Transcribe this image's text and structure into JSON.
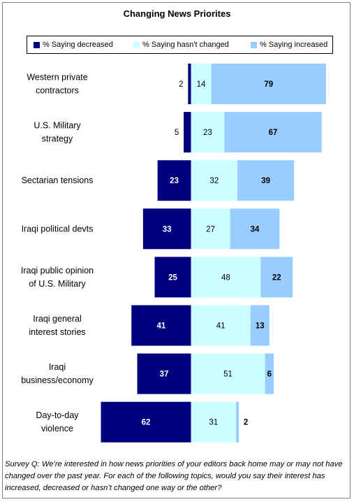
{
  "chart_data": {
    "type": "bar",
    "subtype": "diverging-stacked-horizontal",
    "title": "Changing News Priorites",
    "categories": [
      "Western private contractors",
      "U.S. Military strategy",
      "Sectarian tensions",
      "Iraqi political devts",
      "Iraqi public opinion of U.S. Military",
      "Iraqi general interest stories",
      "Iraqi business/economy",
      "Day-to-day violence"
    ],
    "category_lines": [
      [
        "Western private",
        "contractors"
      ],
      [
        "U.S. Military",
        "strategy"
      ],
      [
        "Sectarian tensions"
      ],
      [
        "Iraqi political devts"
      ],
      [
        "Iraqi public opinion",
        "of U.S. Military"
      ],
      [
        "Iraqi general",
        "interest stories"
      ],
      [
        "Iraqi",
        "business/economy"
      ],
      [
        "Day-to-day",
        "violence"
      ]
    ],
    "series": [
      {
        "name": "% Saying decreased",
        "values": [
          2,
          5,
          23,
          33,
          25,
          41,
          37,
          62
        ],
        "color": "#00007e"
      },
      {
        "name": "% Saying hasn't changed",
        "values": [
          14,
          23,
          32,
          27,
          48,
          41,
          51,
          31
        ],
        "color": "#ccffff"
      },
      {
        "name": "% Saying increased",
        "values": [
          79,
          67,
          39,
          34,
          22,
          13,
          6,
          2
        ],
        "color": "#99ccff"
      }
    ],
    "legend_position": "top",
    "grid": false
  },
  "note": "Survey Q: We’re interested in how news priorities of your editors back home may or may not have changed over the past year. For each of the following topics, would you say their interest has increased, decreased or hasn’t changed one way or the other?"
}
